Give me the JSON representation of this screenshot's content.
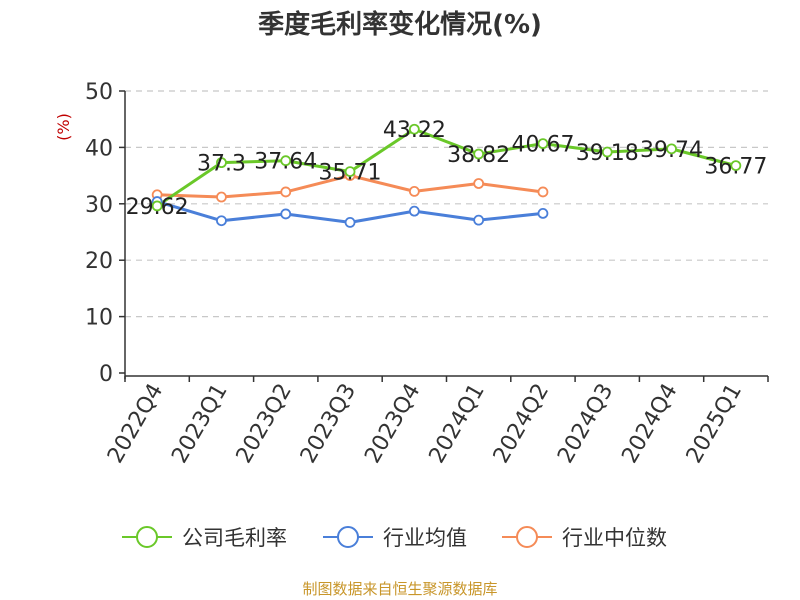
{
  "title": "季度毛利率变化情况(%)",
  "source": "制图数据来自恒生聚源数据库",
  "chart_data": {
    "type": "line",
    "title": "季度毛利率变化情况(%)",
    "ylabel": "(%)",
    "xlabel": "",
    "ylim": [
      0,
      50
    ],
    "yticks": [
      0,
      10,
      20,
      30,
      40,
      50
    ],
    "grid": true,
    "legend_position": "bottom",
    "categories": [
      "2022Q4",
      "2023Q1",
      "2023Q2",
      "2023Q3",
      "2023Q4",
      "2024Q1",
      "2024Q2",
      "2024Q3",
      "2024Q4",
      "2025Q1"
    ],
    "series": [
      {
        "name": "公司毛利率",
        "color": "#6ac829",
        "values": [
          29.62,
          37.3,
          37.64,
          35.71,
          43.22,
          38.82,
          40.67,
          39.18,
          39.74,
          36.77
        ],
        "labels": [
          "29.62",
          "37.3",
          "37.64",
          "35.71",
          "43.22",
          "38.82",
          "40.67",
          "39.18",
          "39.74",
          "36.77"
        ]
      },
      {
        "name": "行业均值",
        "color": "#4a7fd9",
        "values": [
          30.4,
          27.0,
          28.2,
          26.7,
          28.7,
          27.1,
          28.3,
          null,
          null,
          null
        ]
      },
      {
        "name": "行业中位数",
        "color": "#f58b57",
        "values": [
          31.6,
          31.2,
          32.1,
          35.0,
          32.2,
          33.6,
          32.1,
          null,
          null,
          null
        ]
      }
    ]
  }
}
